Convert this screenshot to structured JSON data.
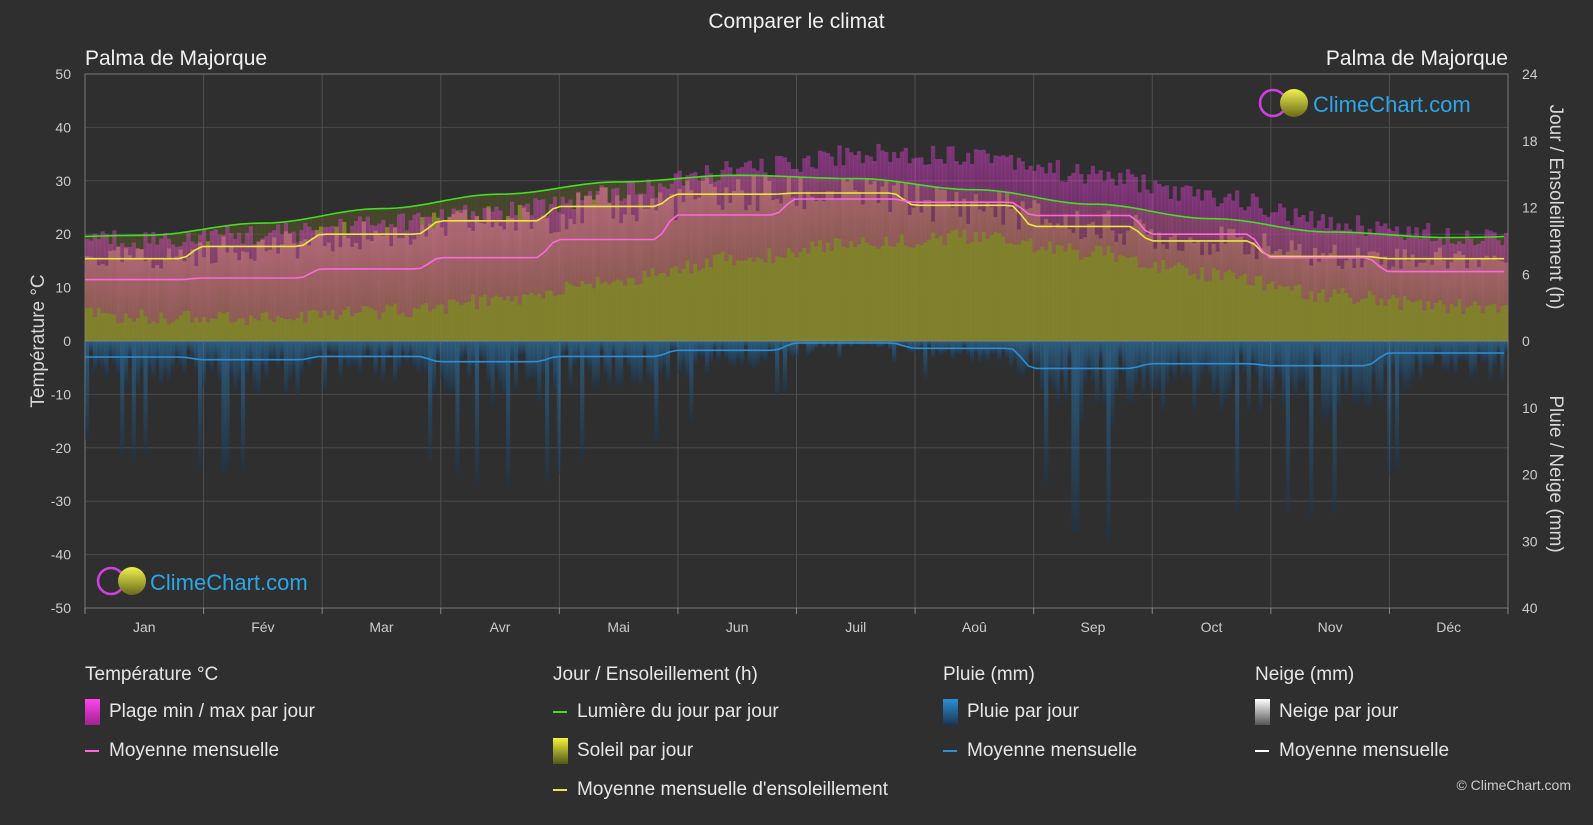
{
  "title": "Comparer le climat",
  "location_left": "Palma de Majorque",
  "location_right": "Palma de Majorque",
  "logo_text": "ClimeChart.com",
  "copyright": "© ClimeChart.com",
  "colors": {
    "background": "#2f2f2f",
    "daylight": "#44dd22",
    "sunshine_line": "#e8e83a",
    "sunshine_fill": "#8c8c2e",
    "temp_line": "#ff66e0",
    "temp_range": "#e040c8",
    "rain_line": "#2b8fd8",
    "rain_bar": "#1e6fa8",
    "snow_line": "#ffffff",
    "logo": "#2ba6e8"
  },
  "chart_data": {
    "type": "line",
    "categories": [
      "Jan",
      "Fév",
      "Mar",
      "Avr",
      "Mai",
      "Jun",
      "Juil",
      "Aoû",
      "Sep",
      "Oct",
      "Nov",
      "Déc"
    ],
    "y_left": {
      "label": "Température °C",
      "min": -50,
      "max": 50,
      "ticks": [
        50,
        40,
        30,
        20,
        10,
        0,
        -10,
        -20,
        -30,
        -40,
        -50
      ]
    },
    "y_right_top": {
      "label": "Jour / Ensoleillement (h)",
      "min": 0,
      "max": 24,
      "ticks": [
        24,
        18,
        12,
        6,
        0
      ]
    },
    "y_right_bottom": {
      "label": "Pluie / Neige (mm)",
      "min": 0,
      "max": 40,
      "ticks": [
        10,
        20,
        30,
        40
      ]
    },
    "series": [
      {
        "name": "Lumière du jour par jour",
        "axis": "hours",
        "values": [
          9.5,
          10.6,
          11.9,
          13.2,
          14.3,
          14.9,
          14.6,
          13.6,
          12.3,
          11.0,
          9.8,
          9.3
        ]
      },
      {
        "name": "Moyenne mensuelle d'ensoleillement",
        "axis": "hours",
        "values": [
          7.4,
          8.5,
          9.6,
          10.8,
          12.1,
          13.2,
          13.3,
          12.2,
          10.3,
          9.0,
          7.6,
          7.4
        ]
      },
      {
        "name": "Moyenne mensuelle",
        "group": "temperature",
        "axis": "temp",
        "values": [
          11.5,
          11.8,
          13.5,
          15.6,
          19.0,
          23.6,
          26.6,
          26.0,
          23.5,
          20.0,
          15.6,
          13.0
        ]
      },
      {
        "name": "Moyenne mensuelle",
        "group": "rain",
        "axis": "rain_mm",
        "values": [
          2.4,
          2.8,
          2.3,
          3.1,
          2.3,
          1.4,
          0.3,
          1.1,
          4.1,
          3.4,
          3.7,
          1.8
        ]
      },
      {
        "name": "Moyenne mensuelle",
        "group": "snow",
        "axis": "rain_mm",
        "values": [
          0,
          0,
          0,
          0,
          0,
          0,
          0,
          0,
          0,
          0,
          0,
          0
        ]
      }
    ],
    "temp_range_daily": {
      "name": "Plage min / max par jour",
      "min": [
        6,
        6,
        7,
        9,
        13,
        17,
        20,
        21,
        18,
        14,
        10,
        8
      ],
      "max": [
        17,
        18,
        20,
        22,
        26,
        30,
        33,
        33,
        29,
        25,
        20,
        18
      ]
    },
    "sun_daily": {
      "name": "Soleil par jour"
    },
    "rain_daily": {
      "name": "Pluie par jour"
    },
    "snow_daily": {
      "name": "Neige par jour"
    },
    "grid": true
  },
  "legend": {
    "temperature": {
      "heading": "Température °C",
      "range": "Plage min / max par jour",
      "mean": "Moyenne mensuelle"
    },
    "sun": {
      "heading": "Jour / Ensoleillement (h)",
      "daylight": "Lumière du jour par jour",
      "sunshine": "Soleil par jour",
      "sun_mean": "Moyenne mensuelle d'ensoleillement"
    },
    "rain": {
      "heading": "Pluie (mm)",
      "rain_day": "Pluie par jour",
      "mean": "Moyenne mensuelle"
    },
    "snow": {
      "heading": "Neige (mm)",
      "snow_day": "Neige par jour",
      "mean": "Moyenne mensuelle"
    }
  }
}
